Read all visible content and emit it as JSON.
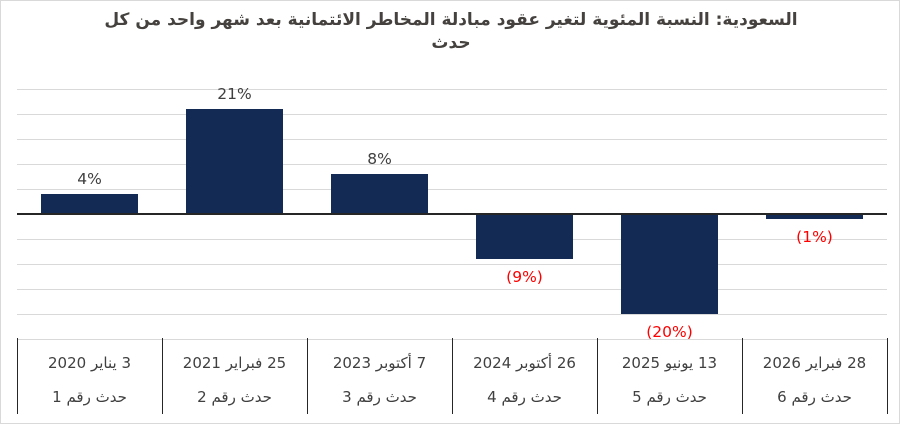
{
  "title": "السعودية: النسبة المئوية لتغير عقود مبادلة المخاطر الائتمانية بعد شهر واحد من كل حدث",
  "colors": {
    "bar": "#132a55",
    "positive_label": "#404040",
    "negative_label": "#ff0000",
    "title": "#44413e",
    "category_text": "#404040",
    "gridline": "#d9d9d9",
    "axis": "#262626",
    "chart_border": "#d9d9d9",
    "background": "#ffffff"
  },
  "chart_data": {
    "type": "bar",
    "title": "السعودية: النسبة المئوية لتغير عقود مبادلة المخاطر الائتمانية بعد شهر واحد من كل حدث",
    "categories": [
      {
        "date": "3 يناير 2020",
        "event": "حدث رقم 1"
      },
      {
        "date": "25 فبراير 2021",
        "event": "حدث رقم 2"
      },
      {
        "date": "7 أكتوبر 2023",
        "event": "حدث رقم 3"
      },
      {
        "date": "26 أكتوبر 2024",
        "event": "حدث رقم 4"
      },
      {
        "date": "13 يونيو 2025",
        "event": "حدث رقم 5"
      },
      {
        "date": "28 فبراير 2026",
        "event": "حدث رقم 6"
      }
    ],
    "values": [
      4,
      21,
      8,
      -9,
      -20,
      -1
    ],
    "data_labels": [
      "4%",
      "21%",
      "8%",
      "(9%)",
      "(20%)",
      "(1%)"
    ],
    "xlabel": "",
    "ylabel": "",
    "ylim": [
      -25,
      25
    ],
    "grid_step": 5,
    "grid": "on",
    "legend": "none",
    "y_axis_labels_visible": false
  }
}
